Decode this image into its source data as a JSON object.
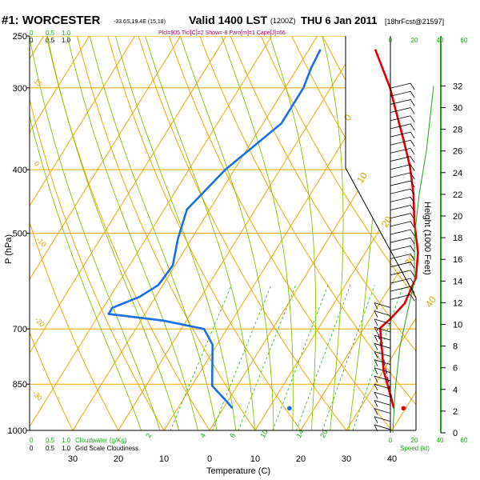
{
  "header": {
    "station": "#1: WORCESTER",
    "coords": "-33.6S,19.4E (15,18)",
    "valid": "Valid 1400 LST",
    "zulu": "(1200Z)",
    "date": "THU 6 Jan 2011",
    "forecast": "[18hrFcst@21597]",
    "indices": "Plcl=905  Tlcl[C]=2  Show=-8  Paro[m]=1  Cape[J]=66"
  },
  "labels": {
    "pressure_axis": "P (hPa)",
    "temperature_axis": "Temperature (C)",
    "height_axis": "Height (1000 Feet)",
    "speed_axis": "Speed (kt)",
    "cloudwater_title": "Cloudwater (g/Kg)",
    "gridscale_title": "Grid Scale Cloudiness",
    "cloud_scale": [
      "0",
      "0.5",
      "1.0"
    ]
  },
  "colors": {
    "temperature": "#e00000",
    "dewpoint": "#1a6fe8",
    "isotherm": "#f0a800",
    "dry_adiabat": "#f0a800",
    "moist_adiabat": "#84c400",
    "mixing_ratio": "#2fbf2f",
    "parcel": "#6a1a80",
    "wind_profile": "#1fa21f"
  },
  "chart_data": {
    "type": "line",
    "title": "#1: WORCESTER  Valid 1400 LST (1200Z) THU 6 Jan 2011",
    "xlabel": "Temperature (C)",
    "ylabel": "P (hPa)",
    "y_scale": "log, inverted",
    "xlim": [
      -32,
      46
    ],
    "ylim": [
      1000,
      250
    ],
    "pressure_ticks": [
      250,
      300,
      400,
      500,
      700,
      850,
      1000
    ],
    "temperature_ticks": [
      30,
      20,
      10,
      0,
      10,
      20,
      30,
      40
    ],
    "height_ticks": [
      0,
      2,
      4,
      6,
      8,
      10,
      12,
      14,
      16,
      18,
      20,
      22,
      24,
      26,
      28,
      30,
      32
    ],
    "height_unit": "1000 Feet",
    "speed_ticks": [
      "0",
      "20",
      "40",
      "60"
    ],
    "isotherm_labels": [
      "0",
      "10",
      "20",
      "30",
      "40"
    ],
    "dry_adiabat_labels": [
      "15",
      "0",
      "-10",
      "-20",
      "-30"
    ],
    "mixing_ratio_labels": [
      "2",
      "4",
      "6",
      "10",
      "14",
      "20"
    ],
    "series": [
      {
        "name": "Temperature",
        "points": [
          [
            37.4,
            925
          ],
          [
            30.0,
            810
          ],
          [
            23.5,
            698
          ],
          [
            24.5,
            675
          ],
          [
            25.5,
            640
          ],
          [
            24.5,
            585
          ],
          [
            21.5,
            535
          ],
          [
            16.5,
            480
          ],
          [
            12.5,
            435
          ],
          [
            8.0,
            395
          ],
          [
            3.0,
            360
          ],
          [
            -3.5,
            320
          ],
          [
            -7.0,
            300
          ],
          [
            -15.5,
            262
          ]
        ]
      },
      {
        "name": "Dewpoint",
        "points": [
          [
            2.0,
            925
          ],
          [
            0.0,
            905
          ],
          [
            -5.5,
            855
          ],
          [
            -11.0,
            740
          ],
          [
            -15.0,
            700
          ],
          [
            -25.0,
            680
          ],
          [
            -38.0,
            664
          ],
          [
            -38.0,
            650
          ],
          [
            -33.5,
            625
          ],
          [
            -31.0,
            600
          ],
          [
            -30.5,
            560
          ],
          [
            -33.0,
            510
          ],
          [
            -35.0,
            460
          ],
          [
            -32.0,
            400
          ],
          [
            -26.0,
            340
          ],
          [
            -26.0,
            300
          ],
          [
            -27.0,
            280
          ],
          [
            -27.5,
            262
          ]
        ]
      },
      {
        "name": "Parcel",
        "points": [
          [
            37.4,
            925
          ],
          [
            23.0,
            700
          ]
        ]
      }
    ],
    "surface_dewpoint": [
      14.5,
      925
    ],
    "surface_temperature": [
      39.5,
      925
    ],
    "wind_profile": [
      {
        "height_kft": 0,
        "speed_kt": 2
      },
      {
        "height_kft": 4,
        "speed_kt": 4
      },
      {
        "height_kft": 8,
        "speed_kt": 8
      },
      {
        "height_kft": 12,
        "speed_kt": 16
      },
      {
        "height_kft": 14,
        "speed_kt": 20
      },
      {
        "height_kft": 18,
        "speed_kt": 20
      },
      {
        "height_kft": 22,
        "speed_kt": 24
      },
      {
        "height_kft": 26,
        "speed_kt": 30
      },
      {
        "height_kft": 30,
        "speed_kt": 34
      },
      {
        "height_kft": 32,
        "speed_kt": 36
      }
    ]
  }
}
